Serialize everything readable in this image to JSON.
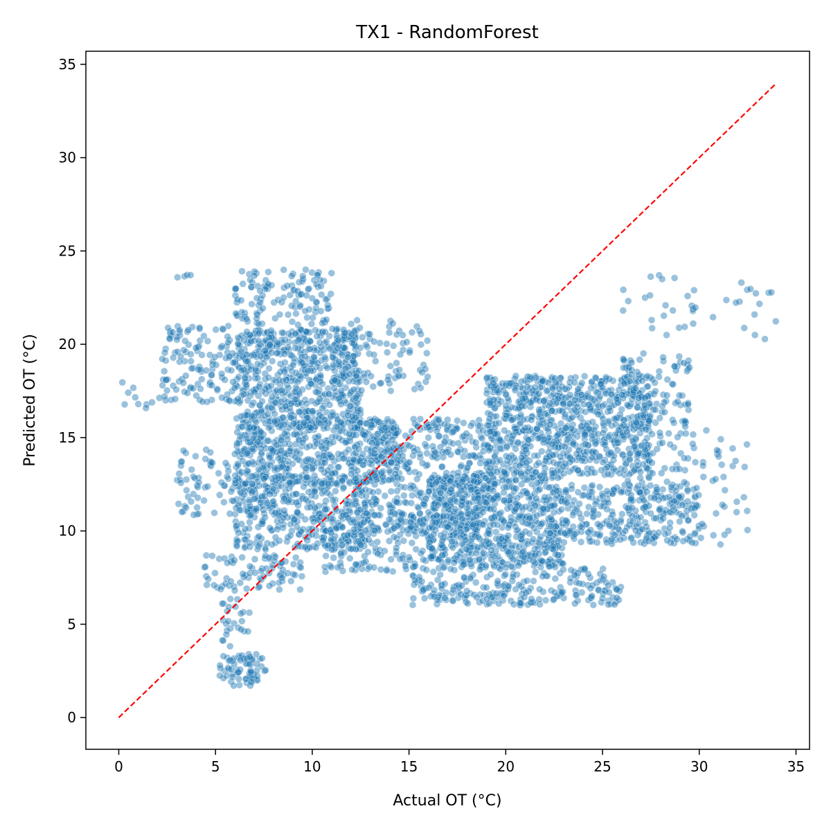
{
  "chart_data": {
    "type": "scatter",
    "title": "TX1 - RandomForest",
    "xlabel": "Actual OT (°C)",
    "ylabel": "Predicted OT (°C)",
    "xlim": [
      -1.7,
      35.7
    ],
    "ylim": [
      -1.7,
      35.7
    ],
    "xticks": [
      0,
      5,
      10,
      15,
      20,
      25,
      30,
      35
    ],
    "yticks": [
      0,
      5,
      10,
      15,
      20,
      25,
      30,
      35
    ],
    "grid": false,
    "legend": "none",
    "point_color": "#1f77b4",
    "point_alpha": 0.45,
    "reference_line": {
      "style": "dashed",
      "color": "#ff0000",
      "from": [
        0,
        0
      ],
      "to": [
        34,
        34
      ]
    },
    "clusters": [
      {
        "xmin": 5.2,
        "xmax": 7.6,
        "ymin": 1.7,
        "ymax": 3.4,
        "n": 70
      },
      {
        "xmin": 5.2,
        "xmax": 6.8,
        "ymin": 3.8,
        "ymax": 6.4,
        "n": 25
      },
      {
        "xmin": 4.3,
        "xmax": 9.5,
        "ymin": 6.8,
        "ymax": 8.7,
        "n": 80
      },
      {
        "xmin": 6.0,
        "xmax": 13.0,
        "ymin": 9.0,
        "ymax": 13.0,
        "n": 350
      },
      {
        "xmin": 3.0,
        "xmax": 9.0,
        "ymin": 10.8,
        "ymax": 14.5,
        "n": 120
      },
      {
        "xmin": 6.0,
        "xmax": 14.5,
        "ymin": 12.5,
        "ymax": 16.0,
        "n": 500
      },
      {
        "xmin": 6.0,
        "xmax": 12.5,
        "ymin": 15.5,
        "ymax": 20.8,
        "n": 600
      },
      {
        "xmin": 2.2,
        "xmax": 6.0,
        "ymin": 16.8,
        "ymax": 21.0,
        "n": 120
      },
      {
        "xmin": 0.0,
        "xmax": 2.5,
        "ymin": 16.5,
        "ymax": 18.2,
        "n": 12
      },
      {
        "xmin": 11.0,
        "xmax": 16.0,
        "ymin": 17.5,
        "ymax": 21.3,
        "n": 100
      },
      {
        "xmin": 6.0,
        "xmax": 11.0,
        "ymin": 21.0,
        "ymax": 24.0,
        "n": 120
      },
      {
        "xmin": 10.5,
        "xmax": 16.0,
        "ymin": 7.8,
        "ymax": 11.5,
        "n": 180
      },
      {
        "xmin": 13.0,
        "xmax": 19.5,
        "ymin": 10.0,
        "ymax": 16.0,
        "n": 400
      },
      {
        "xmin": 16.0,
        "xmax": 23.0,
        "ymin": 8.0,
        "ymax": 13.0,
        "n": 700
      },
      {
        "xmin": 15.0,
        "xmax": 26.0,
        "ymin": 6.0,
        "ymax": 8.0,
        "n": 220
      },
      {
        "xmin": 19.0,
        "xmax": 27.5,
        "ymin": 13.0,
        "ymax": 18.3,
        "n": 800
      },
      {
        "xmin": 23.0,
        "xmax": 30.0,
        "ymin": 9.3,
        "ymax": 12.5,
        "n": 300
      },
      {
        "xmin": 26.0,
        "xmax": 29.5,
        "ymin": 12.5,
        "ymax": 19.8,
        "n": 150
      },
      {
        "xmin": 29.5,
        "xmax": 32.5,
        "ymin": 9.0,
        "ymax": 15.5,
        "n": 40
      },
      {
        "xmin": 26.0,
        "xmax": 34.0,
        "ymin": 20.0,
        "ymax": 23.8,
        "n": 40
      },
      {
        "xmin": 3.0,
        "xmax": 3.8,
        "ymin": 23.5,
        "ymax": 23.8,
        "n": 4
      }
    ]
  }
}
